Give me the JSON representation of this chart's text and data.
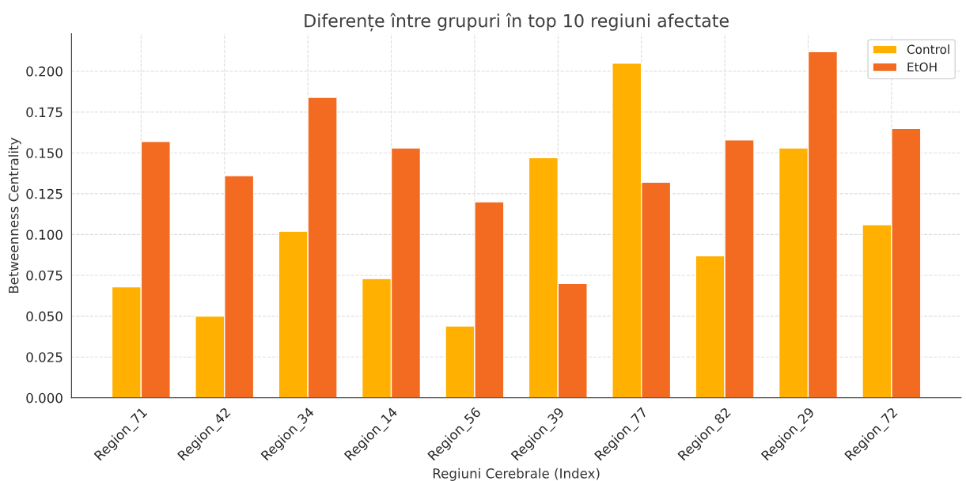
{
  "chart_data": {
    "type": "bar",
    "title": "Diferențe între grupuri în top 10 regiuni afectate",
    "xlabel": "Regiuni Cerebrale (Index)",
    "ylabel": "Betweenness Centrality",
    "categories": [
      "Region_71",
      "Region_42",
      "Region_34",
      "Region_14",
      "Region_56",
      "Region_39",
      "Region_77",
      "Region_82",
      "Region_29",
      "Region_72"
    ],
    "series": [
      {
        "name": "Control",
        "color": "#ffb000",
        "values": [
          0.068,
          0.05,
          0.102,
          0.073,
          0.044,
          0.147,
          0.205,
          0.087,
          0.153,
          0.106
        ]
      },
      {
        "name": "EtOH",
        "color": "#f26b21",
        "values": [
          0.157,
          0.136,
          0.184,
          0.153,
          0.12,
          0.07,
          0.132,
          0.158,
          0.212,
          0.165
        ]
      }
    ],
    "ylim": [
      0,
      0.223
    ],
    "yticks": [
      {
        "value": 0,
        "label": "0.000"
      },
      {
        "value": 0.025,
        "label": "0.025"
      },
      {
        "value": 0.05,
        "label": "0.050"
      },
      {
        "value": 0.075,
        "label": "0.075"
      },
      {
        "value": 0.1,
        "label": "0.100"
      },
      {
        "value": 0.125,
        "label": "0.125"
      },
      {
        "value": 0.15,
        "label": "0.150"
      },
      {
        "value": 0.175,
        "label": "0.175"
      },
      {
        "value": 0.2,
        "label": "0.200"
      }
    ],
    "grid": true,
    "legend": "top right"
  }
}
